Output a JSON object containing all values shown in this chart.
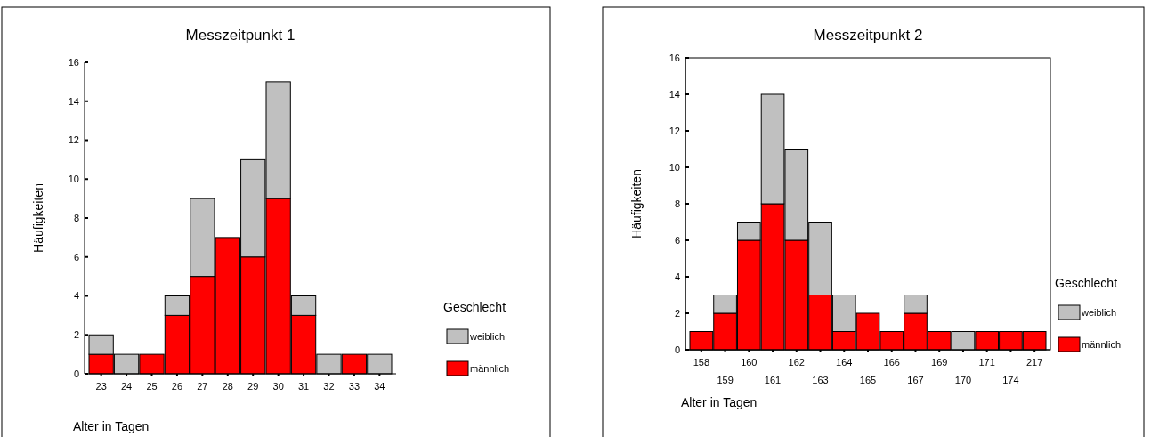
{
  "chart_data": [
    {
      "type": "bar",
      "title": "Messzeitpunkt 1",
      "xlabel": "Alter in Tagen",
      "ylabel": "Häufigkeiten",
      "legend_title": "Geschlecht",
      "stacked": true,
      "legend": "right",
      "categories": [
        "23",
        "24",
        "25",
        "26",
        "27",
        "28",
        "29",
        "30",
        "31",
        "32",
        "33",
        "34"
      ],
      "ylim": [
        0,
        16
      ],
      "yticks": [
        0,
        2,
        4,
        6,
        8,
        10,
        12,
        14,
        16
      ],
      "series": [
        {
          "name": "männlich",
          "color": "#ff0000",
          "values": [
            1,
            0,
            1,
            3,
            5,
            7,
            6,
            9,
            3,
            0,
            1,
            0
          ]
        },
        {
          "name": "weiblich",
          "color": "#c0c0c0",
          "values": [
            1,
            1,
            0,
            1,
            4,
            0,
            5,
            6,
            1,
            1,
            0,
            1
          ]
        }
      ]
    },
    {
      "type": "bar",
      "title": "Messzeitpunkt 2",
      "xlabel": "Alter in Tagen",
      "ylabel": "Häufigkeiten",
      "legend_title": "Geschlecht",
      "stacked": true,
      "legend": "right",
      "categories": [
        "158",
        "159",
        "160",
        "161",
        "162",
        "163",
        "164",
        "165",
        "166",
        "167",
        "169",
        "170",
        "171",
        "174",
        "217"
      ],
      "ylim": [
        0,
        16
      ],
      "yticks": [
        0,
        2,
        4,
        6,
        8,
        10,
        12,
        14,
        16
      ],
      "series": [
        {
          "name": "männlich",
          "color": "#ff0000",
          "values": [
            1,
            2,
            6,
            8,
            6,
            3,
            1,
            2,
            1,
            2,
            1,
            0,
            1,
            1,
            1
          ]
        },
        {
          "name": "weiblich",
          "color": "#c0c0c0",
          "values": [
            0,
            1,
            1,
            6,
            5,
            4,
            2,
            0,
            0,
            1,
            0,
            1,
            0,
            0,
            0
          ]
        }
      ]
    }
  ]
}
